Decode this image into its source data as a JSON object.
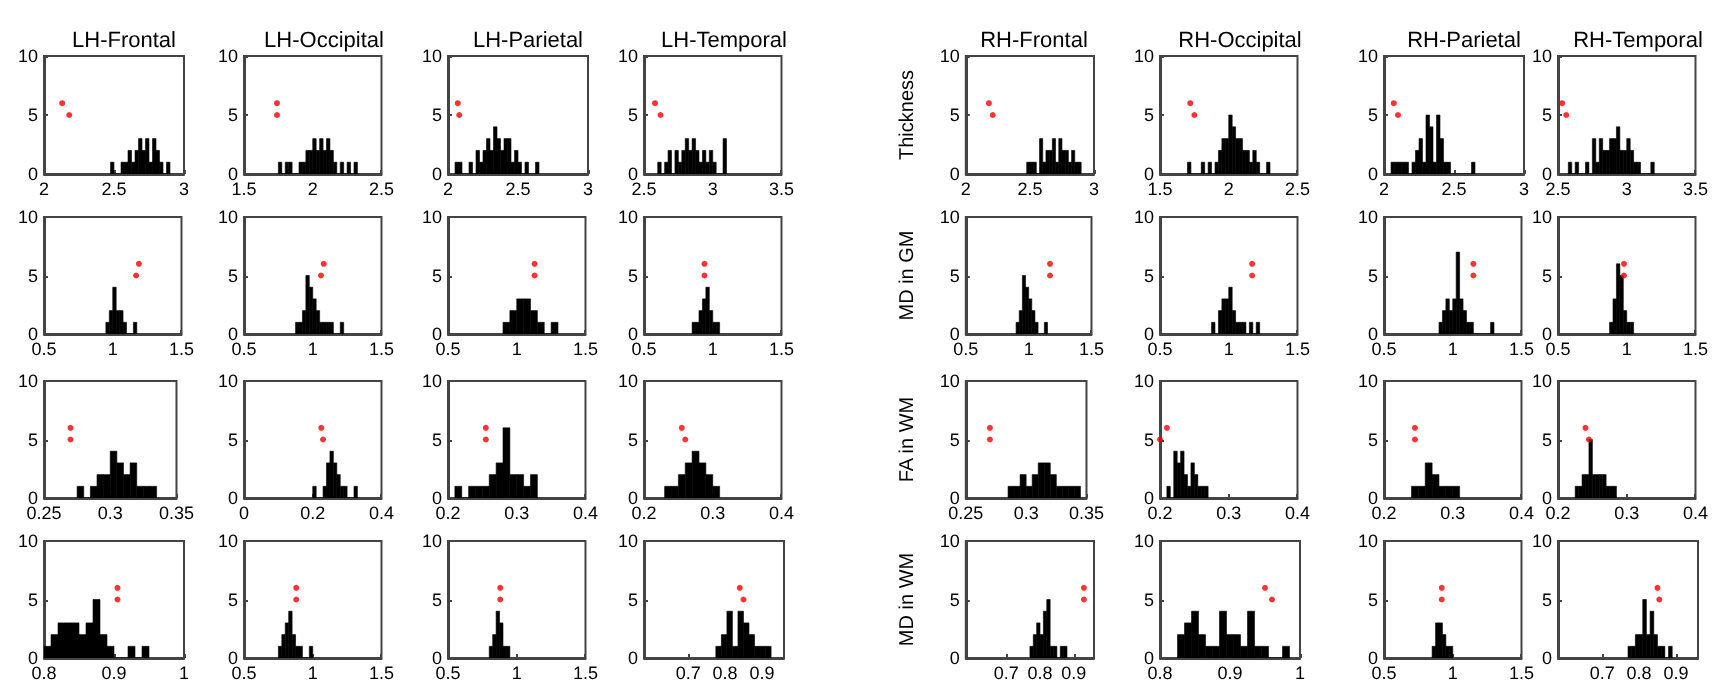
{
  "chart_data": [
    {
      "type": "histogram",
      "title": "LH-Frontal",
      "xlim": [
        2,
        3
      ],
      "xticks": [
        2,
        2.5,
        3
      ],
      "ylim": [
        0,
        10
      ],
      "yticks": [
        0,
        5,
        10
      ],
      "marker": "circle",
      "series": [
        {
          "type": "histogram",
          "bins": [
            2.475,
            2.5,
            2.525,
            2.55,
            2.575,
            2.6,
            2.625,
            2.65,
            2.675,
            2.7,
            2.725,
            2.75,
            2.775,
            2.8,
            2.825,
            2.85,
            2.875,
            2.9
          ],
          "values": [
            1,
            0,
            0,
            1,
            1,
            2,
            1,
            2,
            3,
            2,
            3,
            1,
            3,
            2,
            1,
            0,
            1
          ],
          "color": "#000000"
        },
        {
          "type": "scatter",
          "x": [
            2.13,
            2.18
          ],
          "values": [
            6,
            5
          ],
          "color": "#ff0000"
        }
      ]
    },
    {
      "type": "histogram",
      "title": "LH-Occipital",
      "xlim": [
        1.5,
        2.5
      ],
      "xticks": [
        1.5,
        2,
        2.5
      ],
      "ylim": [
        0,
        10
      ],
      "yticks": [
        0,
        5,
        10
      ],
      "marker": "circle",
      "series": [
        {
          "type": "histogram",
          "bins": [
            1.75,
            1.775,
            1.8,
            1.825,
            1.85,
            1.875,
            1.9,
            1.925,
            1.95,
            1.975,
            2,
            2.025,
            2.05,
            2.075,
            2.1,
            2.125,
            2.15,
            2.175,
            2.2,
            2.225,
            2.25,
            2.275,
            2.3,
            2.325
          ],
          "values": [
            1,
            0,
            1,
            1,
            0,
            0,
            1,
            1,
            2,
            2,
            3,
            2,
            3,
            2,
            3,
            2,
            1,
            0,
            1,
            0,
            1,
            0,
            1
          ],
          "color": "#000000"
        },
        {
          "type": "scatter",
          "x": [
            1.74,
            1.74
          ],
          "values": [
            6,
            5
          ],
          "color": "#ff0000"
        }
      ]
    },
    {
      "type": "histogram",
      "title": "LH-Parietal",
      "xlim": [
        2,
        3
      ],
      "xticks": [
        2,
        2.5,
        3
      ],
      "ylim": [
        0,
        10
      ],
      "yticks": [
        0,
        5,
        10
      ],
      "marker": "circle",
      "series": [
        {
          "type": "histogram",
          "bins": [
            2.05,
            2.075,
            2.1,
            2.125,
            2.15,
            2.175,
            2.2,
            2.225,
            2.25,
            2.275,
            2.3,
            2.325,
            2.35,
            2.375,
            2.4,
            2.425,
            2.45,
            2.475,
            2.5,
            2.525,
            2.55,
            2.575,
            2.6,
            2.625,
            2.65
          ],
          "values": [
            1,
            1,
            0,
            0,
            1,
            0,
            2,
            1,
            2,
            3,
            2,
            4,
            3,
            2,
            3,
            3,
            1,
            2,
            1,
            0,
            1,
            0,
            0,
            1
          ],
          "color": "#000000"
        },
        {
          "type": "scatter",
          "x": [
            2.07,
            2.08
          ],
          "values": [
            6,
            5
          ],
          "color": "#ff0000"
        }
      ]
    },
    {
      "type": "histogram",
      "title": "LH-Temporal",
      "xlim": [
        2.5,
        3.5
      ],
      "xticks": [
        2.5,
        3,
        3.5
      ],
      "ylim": [
        0,
        10
      ],
      "yticks": [
        0,
        5,
        10
      ],
      "marker": "circle",
      "series": [
        {
          "type": "histogram",
          "bins": [
            2.6,
            2.625,
            2.65,
            2.675,
            2.7,
            2.725,
            2.75,
            2.775,
            2.8,
            2.825,
            2.85,
            2.875,
            2.9,
            2.925,
            2.95,
            2.975,
            3,
            3.025,
            3.05,
            3.075,
            3.1
          ],
          "values": [
            1,
            0,
            1,
            2,
            0,
            2,
            1,
            2,
            3,
            2,
            3,
            2,
            1,
            2,
            1,
            2,
            1,
            0,
            0,
            3
          ],
          "color": "#000000"
        },
        {
          "type": "scatter",
          "x": [
            2.58,
            2.62
          ],
          "values": [
            6,
            5
          ],
          "color": "#ff0000"
        }
      ]
    },
    {
      "type": "histogram",
      "title": "RH-Frontal",
      "ylabel": "Thickness",
      "xlim": [
        2,
        3
      ],
      "xticks": [
        2,
        2.5,
        3
      ],
      "ylim": [
        0,
        10
      ],
      "yticks": [
        0,
        5,
        10
      ],
      "marker": "circle",
      "series": [
        {
          "type": "histogram",
          "bins": [
            2.475,
            2.5,
            2.525,
            2.55,
            2.575,
            2.6,
            2.625,
            2.65,
            2.675,
            2.7,
            2.725,
            2.75,
            2.775,
            2.8,
            2.825,
            2.85,
            2.875,
            2.9
          ],
          "values": [
            1,
            1,
            1,
            0,
            3,
            1,
            2,
            2,
            3,
            1,
            3,
            2,
            2,
            1,
            2,
            1,
            1
          ],
          "color": "#000000"
        },
        {
          "type": "scatter",
          "x": [
            2.18,
            2.21
          ],
          "values": [
            6,
            5
          ],
          "color": "#ff0000"
        }
      ]
    },
    {
      "type": "histogram",
      "title": "RH-Occipital",
      "xlim": [
        1.5,
        2.5
      ],
      "xticks": [
        1.5,
        2,
        2.5
      ],
      "ylim": [
        0,
        10
      ],
      "yticks": [
        0,
        5,
        10
      ],
      "marker": "circle",
      "series": [
        {
          "type": "histogram",
          "bins": [
            1.7,
            1.725,
            1.75,
            1.775,
            1.8,
            1.825,
            1.85,
            1.875,
            1.9,
            1.925,
            1.95,
            1.975,
            2,
            2.025,
            2.05,
            2.075,
            2.1,
            2.125,
            2.15,
            2.175,
            2.2,
            2.225,
            2.25,
            2.275,
            2.3
          ],
          "values": [
            1,
            0,
            0,
            0,
            1,
            0,
            1,
            0,
            1,
            2,
            3,
            3,
            5,
            4,
            3,
            3,
            2,
            2,
            1,
            2,
            1,
            0,
            0,
            1
          ],
          "color": "#000000"
        },
        {
          "type": "scatter",
          "x": [
            1.72,
            1.75
          ],
          "values": [
            6,
            5
          ],
          "color": "#ff0000"
        }
      ]
    },
    {
      "type": "histogram",
      "title": "RH-Parietal",
      "xlim": [
        2,
        3
      ],
      "xticks": [
        2,
        2.5,
        3
      ],
      "ylim": [
        0,
        10
      ],
      "yticks": [
        0,
        5,
        10
      ],
      "marker": "circle",
      "series": [
        {
          "type": "histogram",
          "bins": [
            2.05,
            2.075,
            2.1,
            2.125,
            2.15,
            2.175,
            2.2,
            2.225,
            2.25,
            2.275,
            2.3,
            2.325,
            2.35,
            2.375,
            2.4,
            2.425,
            2.45,
            2.475,
            2.5,
            2.525,
            2.55,
            2.575,
            2.6,
            2.625,
            2.65
          ],
          "values": [
            1,
            1,
            1,
            1,
            1,
            0,
            1,
            2,
            3,
            1,
            5,
            4,
            1,
            5,
            3,
            1,
            1,
            0,
            0,
            0,
            0,
            0,
            0,
            1
          ],
          "color": "#000000"
        },
        {
          "type": "scatter",
          "x": [
            2.07,
            2.1
          ],
          "values": [
            6,
            5
          ],
          "color": "#ff0000"
        }
      ]
    },
    {
      "type": "histogram",
      "title": "RH-Temporal",
      "xlim": [
        2.5,
        3.5
      ],
      "xticks": [
        2.5,
        3,
        3.5
      ],
      "ylim": [
        0,
        10
      ],
      "yticks": [
        0,
        5,
        10
      ],
      "marker": "circle",
      "series": [
        {
          "type": "histogram",
          "bins": [
            2.575,
            2.6,
            2.625,
            2.65,
            2.675,
            2.7,
            2.725,
            2.75,
            2.775,
            2.8,
            2.825,
            2.85,
            2.875,
            2.9,
            2.925,
            2.95,
            2.975,
            3,
            3.025,
            3.05,
            3.075,
            3.1,
            3.125,
            3.15,
            3.175,
            3.2
          ],
          "values": [
            1,
            0,
            1,
            0,
            0,
            1,
            0,
            3,
            1,
            3,
            2,
            2,
            3,
            3,
            4,
            2,
            2,
            3,
            2,
            1,
            1,
            0,
            0,
            0,
            1
          ],
          "color": "#000000"
        },
        {
          "type": "scatter",
          "x": [
            2.53,
            2.56
          ],
          "values": [
            6,
            5
          ],
          "color": "#ff0000"
        }
      ]
    },
    {
      "type": "histogram",
      "xlim": [
        0.5,
        1.5
      ],
      "xticks": [
        0.5,
        1,
        1.5
      ],
      "ylim": [
        0,
        10
      ],
      "yticks": [
        0,
        5,
        10
      ],
      "marker": "circle",
      "series": [
        {
          "type": "histogram",
          "bins": [
            0.95,
            0.975,
            1,
            1.025,
            1.05,
            1.075,
            1.1,
            1.125,
            1.15,
            1.175
          ],
          "values": [
            1,
            2,
            4,
            2,
            2,
            1,
            0,
            0,
            1
          ],
          "color": "#000000"
        },
        {
          "type": "scatter",
          "x": [
            1.19,
            1.17
          ],
          "values": [
            6,
            5
          ],
          "color": "#ff0000"
        }
      ]
    },
    {
      "type": "histogram",
      "xlim": [
        0.5,
        1.5
      ],
      "xticks": [
        0.5,
        1,
        1.5
      ],
      "ylim": [
        0,
        10
      ],
      "yticks": [
        0,
        5,
        10
      ],
      "marker": "circle",
      "series": [
        {
          "type": "histogram",
          "bins": [
            0.875,
            0.9,
            0.925,
            0.95,
            0.975,
            1,
            1.025,
            1.05,
            1.075,
            1.1,
            1.125,
            1.15,
            1.175,
            1.2,
            1.225
          ],
          "values": [
            1,
            1,
            2,
            5,
            4,
            3,
            2,
            1,
            1,
            1,
            1,
            0,
            0,
            1
          ],
          "color": "#000000"
        },
        {
          "type": "scatter",
          "x": [
            1.08,
            1.06
          ],
          "values": [
            6,
            5
          ],
          "color": "#ff0000"
        }
      ]
    },
    {
      "type": "histogram",
      "xlim": [
        0.5,
        1.5
      ],
      "xticks": [
        0.5,
        1,
        1.5
      ],
      "ylim": [
        0,
        10
      ],
      "yticks": [
        0,
        5,
        10
      ],
      "marker": "circle",
      "series": [
        {
          "type": "histogram",
          "bins": [
            0.9,
            0.95,
            1,
            1.05,
            1.1,
            1.15,
            1.2,
            1.25,
            1.3
          ],
          "values": [
            1,
            2,
            3,
            3,
            2,
            1,
            0,
            1
          ],
          "color": "#000000"
        },
        {
          "type": "scatter",
          "x": [
            1.13,
            1.13
          ],
          "values": [
            6,
            5
          ],
          "color": "#ff0000"
        }
      ]
    },
    {
      "type": "histogram",
      "xlim": [
        0.5,
        1.5
      ],
      "xticks": [
        0.5,
        1,
        1.5
      ],
      "ylim": [
        0,
        10
      ],
      "yticks": [
        0,
        5,
        10
      ],
      "marker": "circle",
      "series": [
        {
          "type": "histogram",
          "bins": [
            0.85,
            0.875,
            0.9,
            0.925,
            0.95,
            0.975,
            1,
            1.025,
            1.05
          ],
          "values": [
            1,
            1,
            2,
            3,
            4,
            2,
            1,
            1
          ],
          "color": "#000000"
        },
        {
          "type": "scatter",
          "x": [
            0.94,
            0.94
          ],
          "values": [
            6,
            5
          ],
          "color": "#ff0000"
        }
      ]
    },
    {
      "type": "histogram",
      "ylabel": "MD in GM",
      "xlim": [
        0.5,
        1.5
      ],
      "xticks": [
        0.5,
        1,
        1.5
      ],
      "ylim": [
        0,
        10
      ],
      "yticks": [
        0,
        5,
        10
      ],
      "marker": "circle",
      "series": [
        {
          "type": "histogram",
          "bins": [
            0.9,
            0.925,
            0.95,
            0.975,
            1,
            1.025,
            1.05,
            1.075,
            1.1,
            1.125,
            1.15
          ],
          "values": [
            1,
            2,
            5,
            4,
            3,
            2,
            1,
            0,
            0,
            1
          ],
          "color": "#000000"
        },
        {
          "type": "scatter",
          "x": [
            1.17,
            1.17
          ],
          "values": [
            6,
            5
          ],
          "color": "#ff0000"
        }
      ]
    },
    {
      "type": "histogram",
      "xlim": [
        0.5,
        1.5
      ],
      "xticks": [
        0.5,
        1,
        1.5
      ],
      "ylim": [
        0,
        10
      ],
      "yticks": [
        0,
        5,
        10
      ],
      "marker": "circle",
      "series": [
        {
          "type": "histogram",
          "bins": [
            0.875,
            0.9,
            0.925,
            0.95,
            0.975,
            1,
            1.025,
            1.05,
            1.075,
            1.1,
            1.125,
            1.15,
            1.175,
            1.2,
            1.225
          ],
          "values": [
            1,
            0,
            2,
            3,
            3,
            4,
            2,
            1,
            1,
            1,
            0,
            1,
            0,
            1
          ],
          "color": "#000000"
        },
        {
          "type": "scatter",
          "x": [
            1.17,
            1.17
          ],
          "values": [
            6,
            5
          ],
          "color": "#ff0000"
        }
      ]
    },
    {
      "type": "histogram",
      "xlim": [
        0.5,
        1.5
      ],
      "xticks": [
        0.5,
        1,
        1.5
      ],
      "ylim": [
        0,
        10
      ],
      "yticks": [
        0,
        5,
        10
      ],
      "marker": "circle",
      "series": [
        {
          "type": "histogram",
          "bins": [
            0.9,
            0.925,
            0.95,
            0.975,
            1,
            1.025,
            1.05,
            1.075,
            1.1,
            1.125,
            1.15,
            1.175,
            1.2,
            1.225,
            1.25,
            1.275,
            1.3
          ],
          "values": [
            1,
            2,
            3,
            2,
            3,
            7,
            3,
            2,
            1,
            1,
            0,
            0,
            0,
            0,
            0,
            1
          ],
          "color": "#000000"
        },
        {
          "type": "scatter",
          "x": [
            1.15,
            1.15
          ],
          "values": [
            6,
            5
          ],
          "color": "#ff0000"
        }
      ]
    },
    {
      "type": "histogram",
      "xlim": [
        0.5,
        1.5
      ],
      "xticks": [
        0.5,
        1,
        1.5
      ],
      "ylim": [
        0,
        10
      ],
      "yticks": [
        0,
        5,
        10
      ],
      "marker": "circle",
      "series": [
        {
          "type": "histogram",
          "bins": [
            0.875,
            0.9,
            0.925,
            0.95,
            0.975,
            1,
            1.025,
            1.05
          ],
          "values": [
            1,
            3,
            6,
            5,
            2,
            1,
            1
          ],
          "color": "#000000"
        },
        {
          "type": "scatter",
          "x": [
            0.98,
            0.98
          ],
          "values": [
            6,
            5
          ],
          "color": "#ff0000"
        }
      ]
    },
    {
      "type": "histogram",
      "xlim": [
        0.25,
        0.35
      ],
      "xticks": [
        0.25,
        0.3,
        0.35
      ],
      "ylim": [
        0,
        10
      ],
      "yticks": [
        0,
        5,
        10
      ],
      "marker": "circle",
      "series": [
        {
          "type": "histogram",
          "bins": [
            0.275,
            0.28,
            0.285,
            0.29,
            0.295,
            0.3,
            0.305,
            0.31,
            0.315,
            0.32,
            0.325,
            0.33,
            0.335
          ],
          "values": [
            1,
            0,
            1,
            2,
            2,
            4,
            3,
            2,
            3,
            1,
            1,
            1
          ],
          "color": "#000000"
        },
        {
          "type": "scatter",
          "x": [
            0.27,
            0.27
          ],
          "values": [
            6,
            5
          ],
          "color": "#ff0000"
        }
      ]
    },
    {
      "type": "histogram",
      "xlim": [
        0,
        0.4
      ],
      "xticks": [
        0,
        0.2,
        0.4
      ],
      "ylim": [
        0,
        10
      ],
      "yticks": [
        0,
        5,
        10
      ],
      "marker": "circle",
      "series": [
        {
          "type": "histogram",
          "bins": [
            0.2,
            0.21,
            0.22,
            0.23,
            0.24,
            0.25,
            0.26,
            0.27,
            0.28,
            0.29,
            0.3,
            0.31,
            0.32,
            0.33
          ],
          "values": [
            1,
            0,
            0,
            1,
            3,
            4,
            3,
            2,
            1,
            1,
            0,
            0,
            1
          ],
          "color": "#000000"
        },
        {
          "type": "scatter",
          "x": [
            0.225,
            0.23
          ],
          "values": [
            6,
            5
          ],
          "color": "#ff0000"
        }
      ]
    },
    {
      "type": "histogram",
      "xlim": [
        0.2,
        0.4
      ],
      "xticks": [
        0.2,
        0.3,
        0.4
      ],
      "ylim": [
        0,
        10
      ],
      "yticks": [
        0,
        5,
        10
      ],
      "marker": "circle",
      "series": [
        {
          "type": "histogram",
          "bins": [
            0.21,
            0.22,
            0.23,
            0.24,
            0.25,
            0.26,
            0.27,
            0.28,
            0.29,
            0.3,
            0.31,
            0.32,
            0.33
          ],
          "values": [
            1,
            0,
            1,
            1,
            1,
            2,
            3,
            6,
            2,
            2,
            1,
            2
          ],
          "color": "#000000"
        },
        {
          "type": "scatter",
          "x": [
            0.255,
            0.255
          ],
          "values": [
            6,
            5
          ],
          "color": "#ff0000"
        }
      ]
    },
    {
      "type": "histogram",
      "xlim": [
        0.2,
        0.4
      ],
      "xticks": [
        0.2,
        0.3,
        0.4
      ],
      "ylim": [
        0,
        10
      ],
      "yticks": [
        0,
        5,
        10
      ],
      "marker": "circle",
      "series": [
        {
          "type": "histogram",
          "bins": [
            0.23,
            0.24,
            0.25,
            0.26,
            0.27,
            0.28,
            0.29,
            0.3,
            0.31
          ],
          "values": [
            1,
            1,
            2,
            3,
            4,
            3,
            2,
            1
          ],
          "color": "#000000"
        },
        {
          "type": "scatter",
          "x": [
            0.255,
            0.26
          ],
          "values": [
            6,
            5
          ],
          "color": "#ff0000"
        }
      ]
    },
    {
      "type": "histogram",
      "ylabel": "FA in WM",
      "xlim": [
        0.25,
        0.35
      ],
      "xticks": [
        0.25,
        0.3,
        0.35
      ],
      "ylim": [
        0,
        10
      ],
      "yticks": [
        0,
        5,
        10
      ],
      "marker": "circle",
      "series": [
        {
          "type": "histogram",
          "bins": [
            0.285,
            0.29,
            0.295,
            0.3,
            0.305,
            0.31,
            0.315,
            0.32,
            0.325,
            0.33,
            0.335,
            0.34,
            0.345
          ],
          "values": [
            1,
            1,
            2,
            1,
            2,
            3,
            3,
            2,
            1,
            1,
            1,
            1
          ],
          "color": "#000000"
        },
        {
          "type": "scatter",
          "x": [
            0.27,
            0.27
          ],
          "values": [
            6,
            5
          ],
          "color": "#ff0000"
        }
      ]
    },
    {
      "type": "histogram",
      "xlim": [
        0.2,
        0.4
      ],
      "xticks": [
        0.2,
        0.3,
        0.4
      ],
      "ylim": [
        0,
        10
      ],
      "yticks": [
        0,
        5,
        10
      ],
      "marker": "circle",
      "series": [
        {
          "type": "histogram",
          "bins": [
            0.21,
            0.215,
            0.22,
            0.225,
            0.23,
            0.235,
            0.24,
            0.245,
            0.25,
            0.255,
            0.26,
            0.265,
            0.27
          ],
          "values": [
            1,
            0,
            4,
            3,
            4,
            2,
            1,
            3,
            2,
            1,
            1,
            1
          ],
          "color": "#000000"
        },
        {
          "type": "scatter",
          "x": [
            0.21,
            0.2
          ],
          "values": [
            6,
            5
          ],
          "color": "#ff0000"
        }
      ]
    },
    {
      "type": "histogram",
      "xlim": [
        0.2,
        0.4
      ],
      "xticks": [
        0.2,
        0.3,
        0.4
      ],
      "ylim": [
        0,
        10
      ],
      "yticks": [
        0,
        5,
        10
      ],
      "marker": "circle",
      "series": [
        {
          "type": "histogram",
          "bins": [
            0.24,
            0.25,
            0.26,
            0.27,
            0.28,
            0.29,
            0.3,
            0.31
          ],
          "values": [
            1,
            1,
            3,
            2,
            1,
            1,
            1
          ],
          "color": "#000000"
        },
        {
          "type": "scatter",
          "x": [
            0.245,
            0.245
          ],
          "values": [
            6,
            5
          ],
          "color": "#ff0000"
        }
      ]
    },
    {
      "type": "histogram",
      "xlim": [
        0.2,
        0.4
      ],
      "xticks": [
        0.2,
        0.3,
        0.4
      ],
      "ylim": [
        0,
        10
      ],
      "yticks": [
        0,
        5,
        10
      ],
      "marker": "circle",
      "series": [
        {
          "type": "histogram",
          "bins": [
            0.225,
            0.23,
            0.235,
            0.24,
            0.245,
            0.25,
            0.255,
            0.26,
            0.265,
            0.27,
            0.275,
            0.28,
            0.285
          ],
          "values": [
            1,
            1,
            2,
            2,
            5,
            2,
            2,
            2,
            2,
            1,
            1,
            1
          ],
          "color": "#000000"
        },
        {
          "type": "scatter",
          "x": [
            0.24,
            0.245
          ],
          "values": [
            6,
            5
          ],
          "color": "#ff0000"
        }
      ]
    },
    {
      "type": "histogram",
      "xlim": [
        0.8,
        1
      ],
      "xticks": [
        0.8,
        0.9,
        1
      ],
      "ylim": [
        0,
        10
      ],
      "yticks": [
        0,
        5,
        10
      ],
      "marker": "circle",
      "series": [
        {
          "type": "histogram",
          "bins": [
            0.8,
            0.81,
            0.82,
            0.83,
            0.84,
            0.85,
            0.86,
            0.87,
            0.88,
            0.89,
            0.9,
            0.91,
            0.92,
            0.93,
            0.94,
            0.95
          ],
          "values": [
            1,
            2,
            3,
            3,
            3,
            2,
            3,
            5,
            2,
            1,
            0,
            0,
            1,
            0,
            1
          ],
          "color": "#000000"
        },
        {
          "type": "scatter",
          "x": [
            0.905,
            0.905
          ],
          "values": [
            6,
            5
          ],
          "color": "#ff0000"
        }
      ]
    },
    {
      "type": "histogram",
      "xlim": [
        0.5,
        1.5
      ],
      "xticks": [
        0.5,
        1,
        1.5
      ],
      "ylim": [
        0,
        10
      ],
      "yticks": [
        0,
        5,
        10
      ],
      "marker": "circle",
      "series": [
        {
          "type": "histogram",
          "bins": [
            0.75,
            0.775,
            0.8,
            0.825,
            0.85,
            0.875,
            0.9,
            0.925,
            0.95,
            0.975,
            1
          ],
          "values": [
            1,
            2,
            3,
            4,
            2,
            1,
            1,
            0,
            0,
            1
          ],
          "color": "#000000"
        },
        {
          "type": "scatter",
          "x": [
            0.88,
            0.88
          ],
          "values": [
            6,
            5
          ],
          "color": "#ff0000"
        }
      ]
    },
    {
      "type": "histogram",
      "xlim": [
        0.5,
        1.5
      ],
      "xticks": [
        0.5,
        1,
        1.5
      ],
      "ylim": [
        0,
        10
      ],
      "yticks": [
        0,
        5,
        10
      ],
      "marker": "circle",
      "series": [
        {
          "type": "histogram",
          "bins": [
            0.8,
            0.825,
            0.85,
            0.875,
            0.9,
            0.925,
            0.95
          ],
          "values": [
            1,
            2,
            4,
            3,
            1,
            1
          ],
          "color": "#000000"
        },
        {
          "type": "scatter",
          "x": [
            0.88,
            0.88
          ],
          "values": [
            6,
            5
          ],
          "color": "#ff0000"
        }
      ]
    },
    {
      "type": "histogram",
      "xlim": [
        0.58,
        0.96
      ],
      "xticks": [
        0.7,
        0.8,
        0.9
      ],
      "ylim": [
        0,
        10
      ],
      "yticks": [
        0,
        5,
        10
      ],
      "marker": "circle",
      "series": [
        {
          "type": "histogram",
          "bins": [
            0.775,
            0.79,
            0.805,
            0.82,
            0.835,
            0.85,
            0.865,
            0.88,
            0.895,
            0.91,
            0.925
          ],
          "values": [
            1,
            2,
            4,
            1,
            4,
            3,
            2,
            1,
            1,
            1
          ],
          "color": "#000000"
        },
        {
          "type": "scatter",
          "x": [
            0.84,
            0.85
          ],
          "values": [
            6,
            5
          ],
          "color": "#ff0000"
        }
      ]
    },
    {
      "type": "histogram",
      "ylabel": "MD in WM",
      "xlim": [
        0.58,
        0.96
      ],
      "xticks": [
        0.7,
        0.8,
        0.9
      ],
      "ylim": [
        0,
        10
      ],
      "yticks": [
        0,
        5,
        10
      ],
      "marker": "circle",
      "series": [
        {
          "type": "histogram",
          "bins": [
            0.77,
            0.78,
            0.79,
            0.8,
            0.81,
            0.82,
            0.83,
            0.84,
            0.85,
            0.86,
            0.87,
            0.88
          ],
          "values": [
            1,
            2,
            3,
            2,
            4,
            5,
            1,
            1,
            0,
            1,
            1
          ],
          "color": "#000000"
        },
        {
          "type": "scatter",
          "x": [
            0.93,
            0.93
          ],
          "values": [
            6,
            5
          ],
          "color": "#ff0000"
        }
      ]
    },
    {
      "type": "histogram",
      "xlim": [
        0.8,
        1
      ],
      "xticks": [
        0.8,
        0.9,
        1
      ],
      "ylim": [
        0,
        10
      ],
      "yticks": [
        0,
        5,
        10
      ],
      "marker": "circle",
      "series": [
        {
          "type": "histogram",
          "bins": [
            0.825,
            0.835,
            0.845,
            0.855,
            0.865,
            0.875,
            0.885,
            0.895,
            0.905,
            0.915,
            0.925,
            0.935,
            0.945,
            0.955,
            0.965,
            0.975,
            0.985
          ],
          "values": [
            2,
            3,
            4,
            2,
            1,
            1,
            4,
            2,
            2,
            1,
            4,
            1,
            1,
            0,
            0,
            1
          ],
          "color": "#000000"
        },
        {
          "type": "scatter",
          "x": [
            0.95,
            0.96
          ],
          "values": [
            6,
            5
          ],
          "color": "#ff0000"
        }
      ]
    },
    {
      "type": "histogram",
      "xlim": [
        0.5,
        1.5
      ],
      "xticks": [
        0.5,
        1,
        1.5
      ],
      "ylim": [
        0,
        10
      ],
      "yticks": [
        0,
        5,
        10
      ],
      "marker": "circle",
      "series": [
        {
          "type": "histogram",
          "bins": [
            0.85,
            0.875,
            0.9,
            0.925,
            0.95,
            0.975,
            1
          ],
          "values": [
            1,
            3,
            3,
            2,
            1,
            1
          ],
          "color": "#000000"
        },
        {
          "type": "scatter",
          "x": [
            0.92,
            0.92
          ],
          "values": [
            6,
            5
          ],
          "color": "#ff0000"
        }
      ]
    },
    {
      "type": "histogram",
      "xlim": [
        0.58,
        0.96
      ],
      "xticks": [
        0.7,
        0.8,
        0.9
      ],
      "ylim": [
        0,
        10
      ],
      "yticks": [
        0,
        5,
        10
      ],
      "marker": "circle",
      "series": [
        {
          "type": "histogram",
          "bins": [
            0.77,
            0.78,
            0.79,
            0.8,
            0.81,
            0.82,
            0.83,
            0.84,
            0.85,
            0.86,
            0.87,
            0.88,
            0.89
          ],
          "values": [
            1,
            1,
            2,
            2,
            5,
            2,
            4,
            2,
            1,
            1,
            0,
            1
          ],
          "color": "#000000"
        },
        {
          "type": "scatter",
          "x": [
            0.85,
            0.855
          ],
          "values": [
            6,
            5
          ],
          "color": "#ff0000"
        }
      ]
    }
  ]
}
